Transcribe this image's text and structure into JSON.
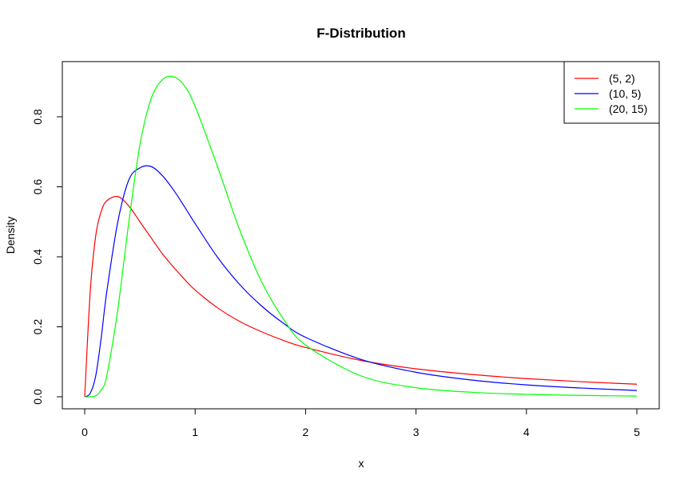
{
  "chart_data": {
    "type": "line",
    "title": "F-Distribution",
    "xlabel": "x",
    "ylabel": "Density",
    "xlim": [
      0,
      5
    ],
    "ylim": [
      0,
      0.92
    ],
    "x_ticks": [
      0,
      1,
      2,
      3,
      4,
      5
    ],
    "x_tick_labels": [
      "0",
      "1",
      "2",
      "3",
      "4",
      "5"
    ],
    "y_ticks": [
      0.0,
      0.2,
      0.4,
      0.6,
      0.8
    ],
    "y_tick_labels": [
      "0.0",
      "0.2",
      "0.4",
      "0.6",
      "0.8"
    ],
    "grid": false,
    "legend_position": "top-right",
    "x": [
      0,
      0.05,
      0.1,
      0.15,
      0.2,
      0.3,
      0.4,
      0.5,
      0.6,
      0.7,
      0.8,
      0.9,
      1.0,
      1.2,
      1.4,
      1.6,
      1.8,
      2.0,
      2.5,
      3.0,
      3.5,
      4.0,
      4.5,
      5.0
    ],
    "series": [
      {
        "name": "(5, 2)",
        "color": "#ff0000",
        "values": [
          0,
          0.3,
          0.46,
          0.53,
          0.56,
          0.572,
          0.545,
          0.5,
          0.455,
          0.41,
          0.372,
          0.337,
          0.305,
          0.255,
          0.216,
          0.186,
          0.161,
          0.141,
          0.104,
          0.08,
          0.064,
          0.052,
          0.043,
          0.036
        ]
      },
      {
        "name": "(10, 5)",
        "color": "#0000ff",
        "values": [
          0,
          0.01,
          0.06,
          0.17,
          0.3,
          0.5,
          0.62,
          0.654,
          0.658,
          0.633,
          0.593,
          0.545,
          0.495,
          0.4,
          0.322,
          0.26,
          0.21,
          0.17,
          0.107,
          0.07,
          0.048,
          0.034,
          0.025,
          0.018
        ]
      },
      {
        "name": "(20, 15)",
        "color": "#00ff00",
        "values": [
          0,
          0.0,
          0.003,
          0.02,
          0.06,
          0.25,
          0.5,
          0.72,
          0.85,
          0.905,
          0.915,
          0.89,
          0.83,
          0.66,
          0.48,
          0.33,
          0.222,
          0.148,
          0.06,
          0.026,
          0.013,
          0.007,
          0.004,
          0.002
        ]
      }
    ]
  }
}
